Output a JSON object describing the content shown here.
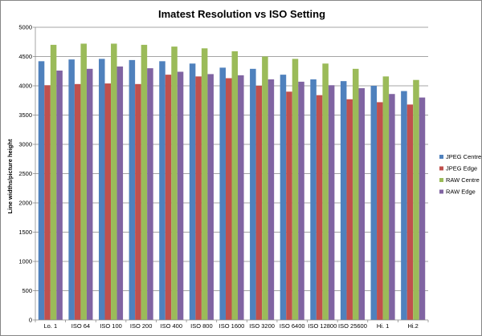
{
  "chart_data": {
    "type": "bar",
    "title": "Imatest Resolution vs ISO Setting",
    "xlabel": "",
    "ylabel": "Line widths/picture height",
    "ylim": [
      0,
      5000
    ],
    "yticks": [
      0,
      500,
      1000,
      1500,
      2000,
      2500,
      3000,
      3500,
      4000,
      4500,
      5000
    ],
    "grid": true,
    "legend_position": "right",
    "categories": [
      "Lo. 1",
      "ISO 64",
      "ISO 100",
      "ISO 200",
      "ISO 400",
      "ISO 800",
      "ISO 1600",
      "ISO 3200",
      "ISO 6400",
      "ISO 12800",
      "ISO 25600",
      "Hi. 1",
      "Hi.2"
    ],
    "series": [
      {
        "name": "JPEG Centre",
        "color": "#4F81BD",
        "values": [
          4420,
          4450,
          4460,
          4440,
          4420,
          4380,
          4310,
          4290,
          4190,
          4110,
          4080,
          4000,
          3910
        ]
      },
      {
        "name": "JPEG Edge",
        "color": "#C0504D",
        "values": [
          4010,
          4030,
          4040,
          4030,
          4190,
          4160,
          4130,
          4000,
          3900,
          3840,
          3770,
          3720,
          3680
        ]
      },
      {
        "name": "RAW Centre",
        "color": "#9BBB59",
        "values": [
          4700,
          4720,
          4720,
          4700,
          4670,
          4640,
          4590,
          4500,
          4460,
          4380,
          4290,
          4160,
          4100
        ]
      },
      {
        "name": "RAW Edge",
        "color": "#8064A2",
        "values": [
          4260,
          4290,
          4330,
          4300,
          4240,
          4200,
          4180,
          4110,
          4070,
          4010,
          3960,
          3860,
          3800
        ]
      }
    ]
  }
}
